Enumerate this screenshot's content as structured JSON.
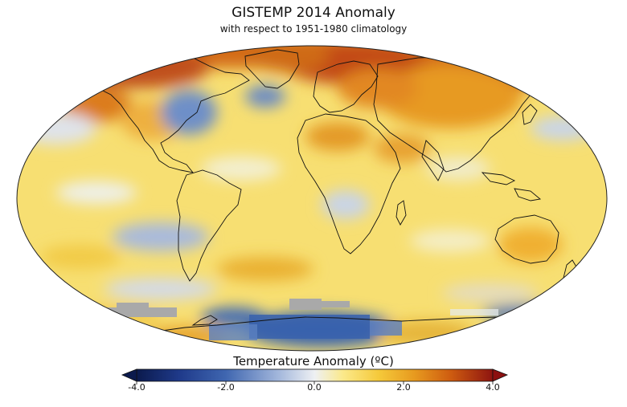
{
  "title": "GISTEMP 2014 Anomaly",
  "subtitle": "with respect to 1951-1980 climatology",
  "colorbar": {
    "label": "Temperature Anomaly (ºC)",
    "min": -4.0,
    "max": 4.0,
    "ticks": [
      "-4.0",
      "-2.0",
      "0.0",
      "2.0",
      "4.0"
    ],
    "tick_values": [
      -4,
      -2,
      0,
      2,
      4
    ],
    "colors": [
      "#0b1a4d",
      "#1f3a8a",
      "#3f66b0",
      "#8aa6d4",
      "#e8ecf2",
      "#fbe98a",
      "#f5c93a",
      "#e79a1f",
      "#cf5d10",
      "#9e1b0f"
    ],
    "under_color": "#0b1a4d",
    "over_color": "#8c1010"
  },
  "map": {
    "projection": "Robinson",
    "missing_data_color": "#a9a9a9",
    "ocean_base_color": "#f9e27a"
  }
}
